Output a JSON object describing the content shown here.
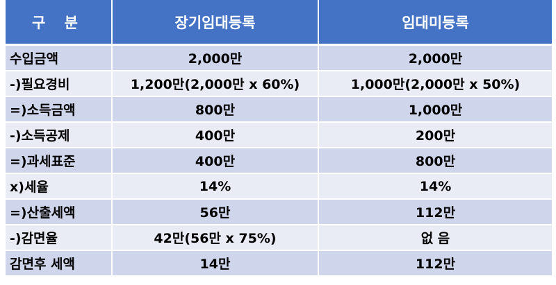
{
  "header": {
    "col1": "구 분",
    "col2": "장기임대등록",
    "col3": "임대미등록"
  },
  "rows": [
    {
      "label": "수입금액",
      "long_term": "2,000만",
      "unregistered": "2,000만"
    },
    {
      "label": "-)필요경비",
      "long_term": "1,200만(2,000만 x 60%)",
      "unregistered": "1,000만(2,000만 x 50%)"
    },
    {
      "label": "=)소득금액",
      "long_term": "800만",
      "unregistered": "1,000만"
    },
    {
      "label": "-)소득공제",
      "long_term": "400만",
      "unregistered": "200만"
    },
    {
      "label": "=)과세표준",
      "long_term": "400만",
      "unregistered": "800만"
    },
    {
      "label": "x)세율",
      "long_term": "14%",
      "unregistered": "14%"
    },
    {
      "label": "=)산출세액",
      "long_term": "56만",
      "unregistered": "112만"
    },
    {
      "label": "-)감면율",
      "long_term": "42만(56만 x 75%)",
      "unregistered": "없 음"
    },
    {
      "label": "감면후 세액",
      "long_term": "14만",
      "unregistered": "112만"
    }
  ]
}
